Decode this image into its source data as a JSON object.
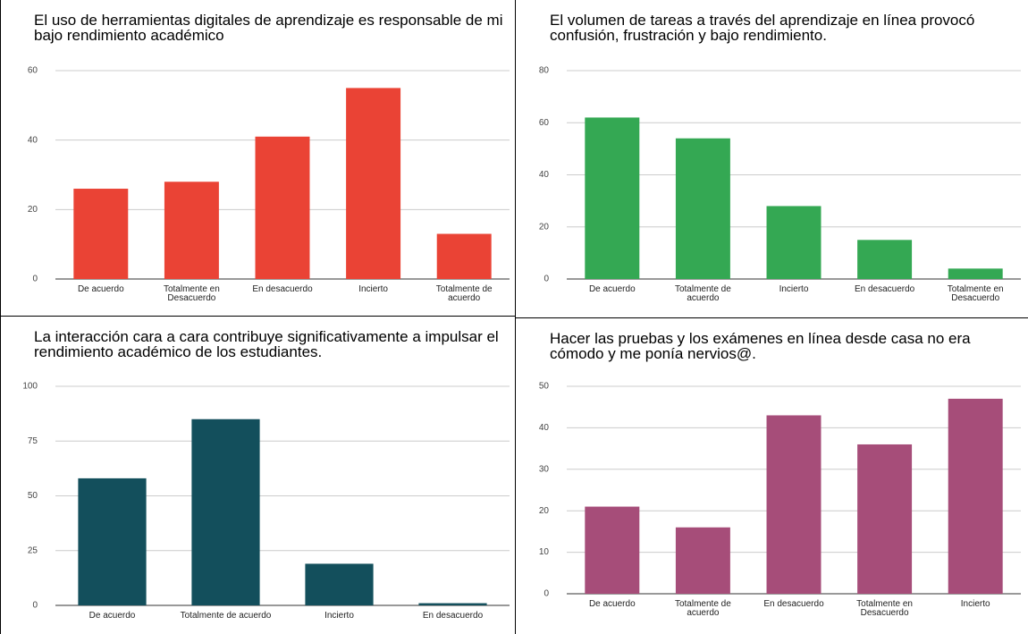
{
  "chart_data": [
    {
      "type": "bar",
      "title": "El uso de herramientas digitales de aprendizaje es responsable de mi bajo rendimiento académico",
      "categories": [
        "De acuerdo",
        "Totalmente en Desacuerdo",
        "En desacuerdo",
        "Incierto",
        "Totalmente de acuerdo"
      ],
      "values": [
        26,
        28,
        41,
        55,
        13
      ],
      "color": "#ea4335",
      "ylim": [
        0,
        60
      ],
      "yticks": [
        0,
        20,
        40,
        60
      ],
      "grid": true
    },
    {
      "type": "bar",
      "title": "El volumen de tareas a través del aprendizaje en línea provocó confusión, frustración y bajo rendimiento.",
      "categories": [
        "De acuerdo",
        "Totalmente de acuerdo",
        "Incierto",
        "En desacuerdo",
        "Totalmente en Desacuerdo"
      ],
      "values": [
        62,
        54,
        28,
        15,
        4
      ],
      "color": "#34a853",
      "ylim": [
        0,
        80
      ],
      "yticks": [
        0,
        20,
        40,
        60,
        80
      ],
      "grid": true
    },
    {
      "type": "bar",
      "title": "La interacción cara a cara contribuye significativamente a impulsar el rendimiento académico de los estudiantes.",
      "categories": [
        "De acuerdo",
        "Totalmente de acuerdo",
        "Incierto",
        "En desacuerdo"
      ],
      "values": [
        58,
        85,
        19,
        1
      ],
      "color": "#134f5c",
      "ylim": [
        0,
        100
      ],
      "yticks": [
        0,
        25,
        50,
        75,
        100
      ],
      "grid": true
    },
    {
      "type": "bar",
      "title": "Hacer las pruebas y los exámenes en línea desde casa no era cómodo y me ponía nervios@.",
      "categories": [
        "De acuerdo",
        "Totalmente de acuerdo",
        "En desacuerdo",
        "Totalmente en Desacuerdo",
        "Incierto"
      ],
      "values": [
        21,
        16,
        43,
        36,
        47
      ],
      "color": "#a64d79",
      "ylim": [
        0,
        50
      ],
      "yticks": [
        0,
        10,
        20,
        30,
        40,
        50
      ],
      "grid": true
    }
  ]
}
